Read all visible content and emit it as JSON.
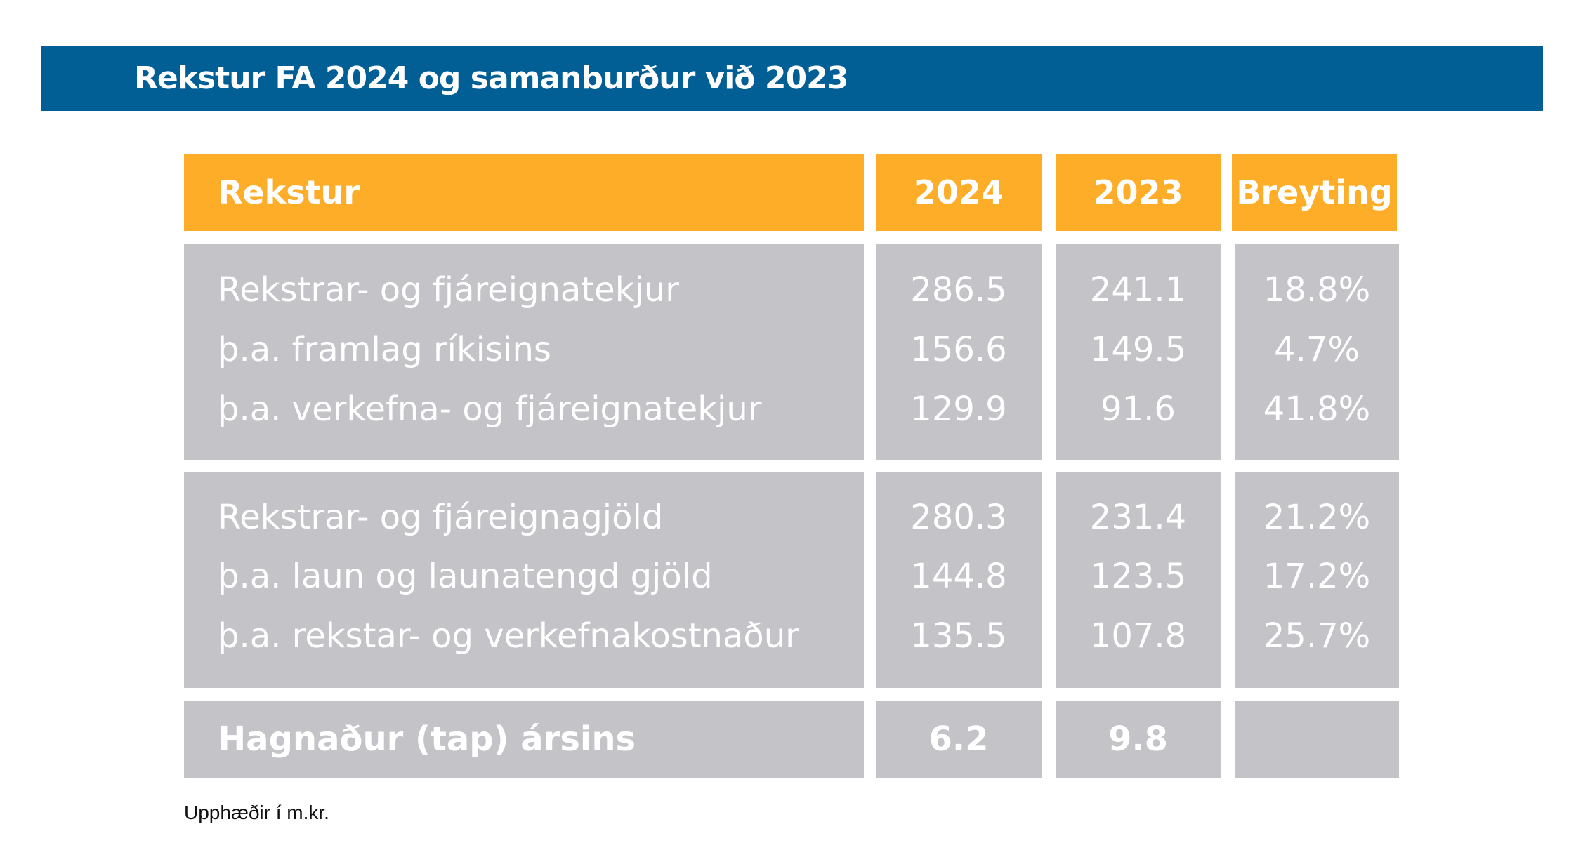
{
  "title": "Rekstur FA 2024 og samanburður við 2023",
  "header": {
    "label": "Rekstur",
    "col2024": "2024",
    "col2023": "2023",
    "change": "Breyting"
  },
  "groups": [
    {
      "rows": [
        {
          "label": "Rekstrar- og fjáreignatekjur",
          "v2024": "286.5",
          "v2023": "241.1",
          "change": "18.8%"
        },
        {
          "label": "þ.a. framlag ríkisins",
          "v2024": "156.6",
          "v2023": "149.5",
          "change": "4.7%"
        },
        {
          "label": "þ.a. verkefna- og fjáreignatekjur",
          "v2024": "129.9",
          "v2023": "91.6",
          "change": "41.8%"
        }
      ]
    },
    {
      "rows": [
        {
          "label": "Rekstrar- og fjáreignagjöld",
          "v2024": "280.3",
          "v2023": "231.4",
          "change": "21.2%"
        },
        {
          "label": "þ.a. laun og launatengd gjöld",
          "v2024": "144.8",
          "v2023": "123.5",
          "change": "17.2%"
        },
        {
          "label": "þ.a. rekstar- og verkefnakostnaður",
          "v2024": "135.5",
          "v2023": "107.8",
          "change": "25.7%"
        }
      ]
    }
  ],
  "total": {
    "label": "Hagnaður (tap) ársins",
    "v2024": "6.2",
    "v2023": "9.8",
    "change": ""
  },
  "footnote": "Upphæðir í m.kr.",
  "colors": {
    "title_band": "#025F95",
    "header": "#FDAD28",
    "body": "#C4C3C8"
  }
}
